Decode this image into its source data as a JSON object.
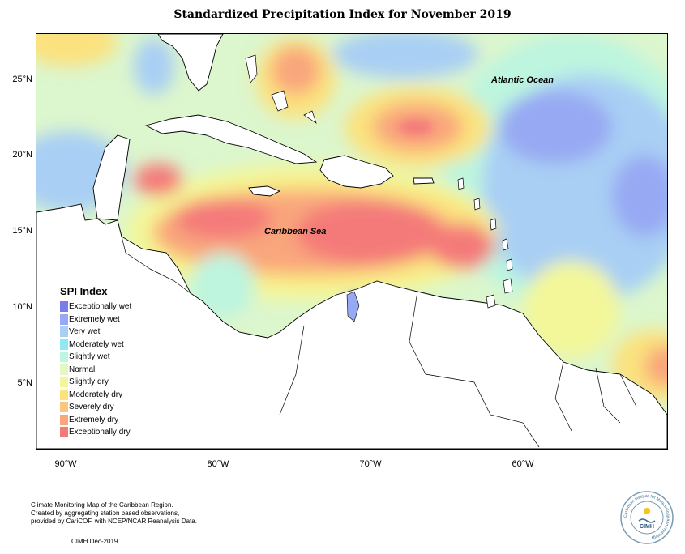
{
  "title": "Standardized Precipitation Index for November 2019",
  "map": {
    "ocean_labels": [
      "Atlantic Ocean",
      "Caribbean Sea"
    ],
    "lat_ticks": [
      "25°N",
      "20°N",
      "15°N",
      "10°N",
      "5°N"
    ],
    "lon_ticks": [
      "90°W",
      "80°W",
      "70°W",
      "60°W"
    ]
  },
  "legend": {
    "title": "SPI Index",
    "items": [
      {
        "label": "Exceptionally wet",
        "color": "#7b7bf0"
      },
      {
        "label": "Extremely wet",
        "color": "#97a9f3"
      },
      {
        "label": "Very wet",
        "color": "#a9cff4"
      },
      {
        "label": "Moderately wet",
        "color": "#8fe9ef"
      },
      {
        "label": "Slightly wet",
        "color": "#bdf5df"
      },
      {
        "label": "Normal",
        "color": "#e3f9c4"
      },
      {
        "label": "Slightly dry",
        "color": "#f3f79a"
      },
      {
        "label": "Moderately dry",
        "color": "#fbe27e"
      },
      {
        "label": "Severely dry",
        "color": "#fcc77c"
      },
      {
        "label": "Extremely dry",
        "color": "#f9a67c"
      },
      {
        "label": "Exceptionally dry",
        "color": "#f47a7a"
      }
    ]
  },
  "footer": {
    "lines": [
      "Climate Monitoring Map of the Caribbean Region.",
      "Created by aggregating station based observations,",
      "provided by CariCOF, with NCEP/NCAR Reanalysis Data."
    ],
    "credit": "CIMH Dec-2019"
  },
  "logo": {
    "ring_text": "Caribbean Institute for Meteorology and Hydrology",
    "center_text": "CIMH"
  }
}
